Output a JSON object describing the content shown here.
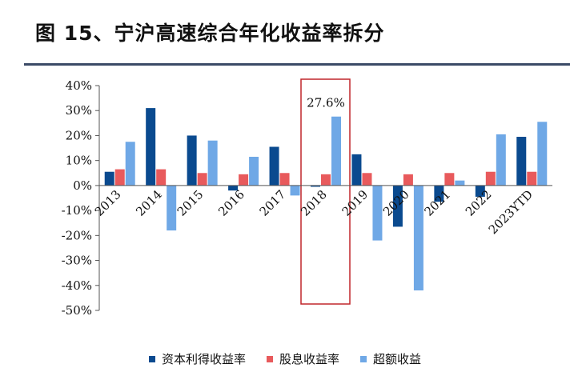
{
  "title": "图 15、宁沪高速综合年化收益率拆分",
  "colors": {
    "series": [
      "#0a4a8f",
      "#e85a5c",
      "#6fa8e6"
    ],
    "highlight_box": "#c0262b",
    "rule": "#3b4a66"
  },
  "chart_data": {
    "type": "bar",
    "title": "",
    "xlabel": "",
    "ylabel": "",
    "ylim": [
      -50,
      40
    ],
    "yticks": [
      40,
      30,
      20,
      10,
      0,
      -10,
      -20,
      -30,
      -40,
      -50
    ],
    "ytick_labels": [
      "40%",
      "30%",
      "20%",
      "10%",
      "0%",
      "-10%",
      "-20%",
      "-30%",
      "-40%",
      "-50%"
    ],
    "categories": [
      "2013",
      "2014",
      "2015",
      "2016",
      "2017",
      "2018",
      "2019",
      "2020",
      "2021",
      "2022",
      "2023YTD"
    ],
    "series": [
      {
        "name": "资本利得收益率",
        "values": [
          5.5,
          31,
          20,
          -2,
          15.5,
          -0.5,
          12.5,
          -16.5,
          -6.5,
          -4.5,
          19.5
        ]
      },
      {
        "name": "股息收益率",
        "values": [
          6.5,
          6.5,
          5,
          4.5,
          5,
          4.5,
          5,
          4.5,
          5,
          5.5,
          5.5
        ]
      },
      {
        "name": "超额收益",
        "values": [
          17.5,
          -18,
          18,
          11.5,
          -4,
          27.6,
          -22,
          -42,
          2,
          20.5,
          25.5
        ]
      }
    ],
    "annotation": {
      "category": "2018",
      "text": "27.6%"
    },
    "highlight_category": "2018",
    "legend": {
      "position": "bottom"
    },
    "grid": false
  }
}
